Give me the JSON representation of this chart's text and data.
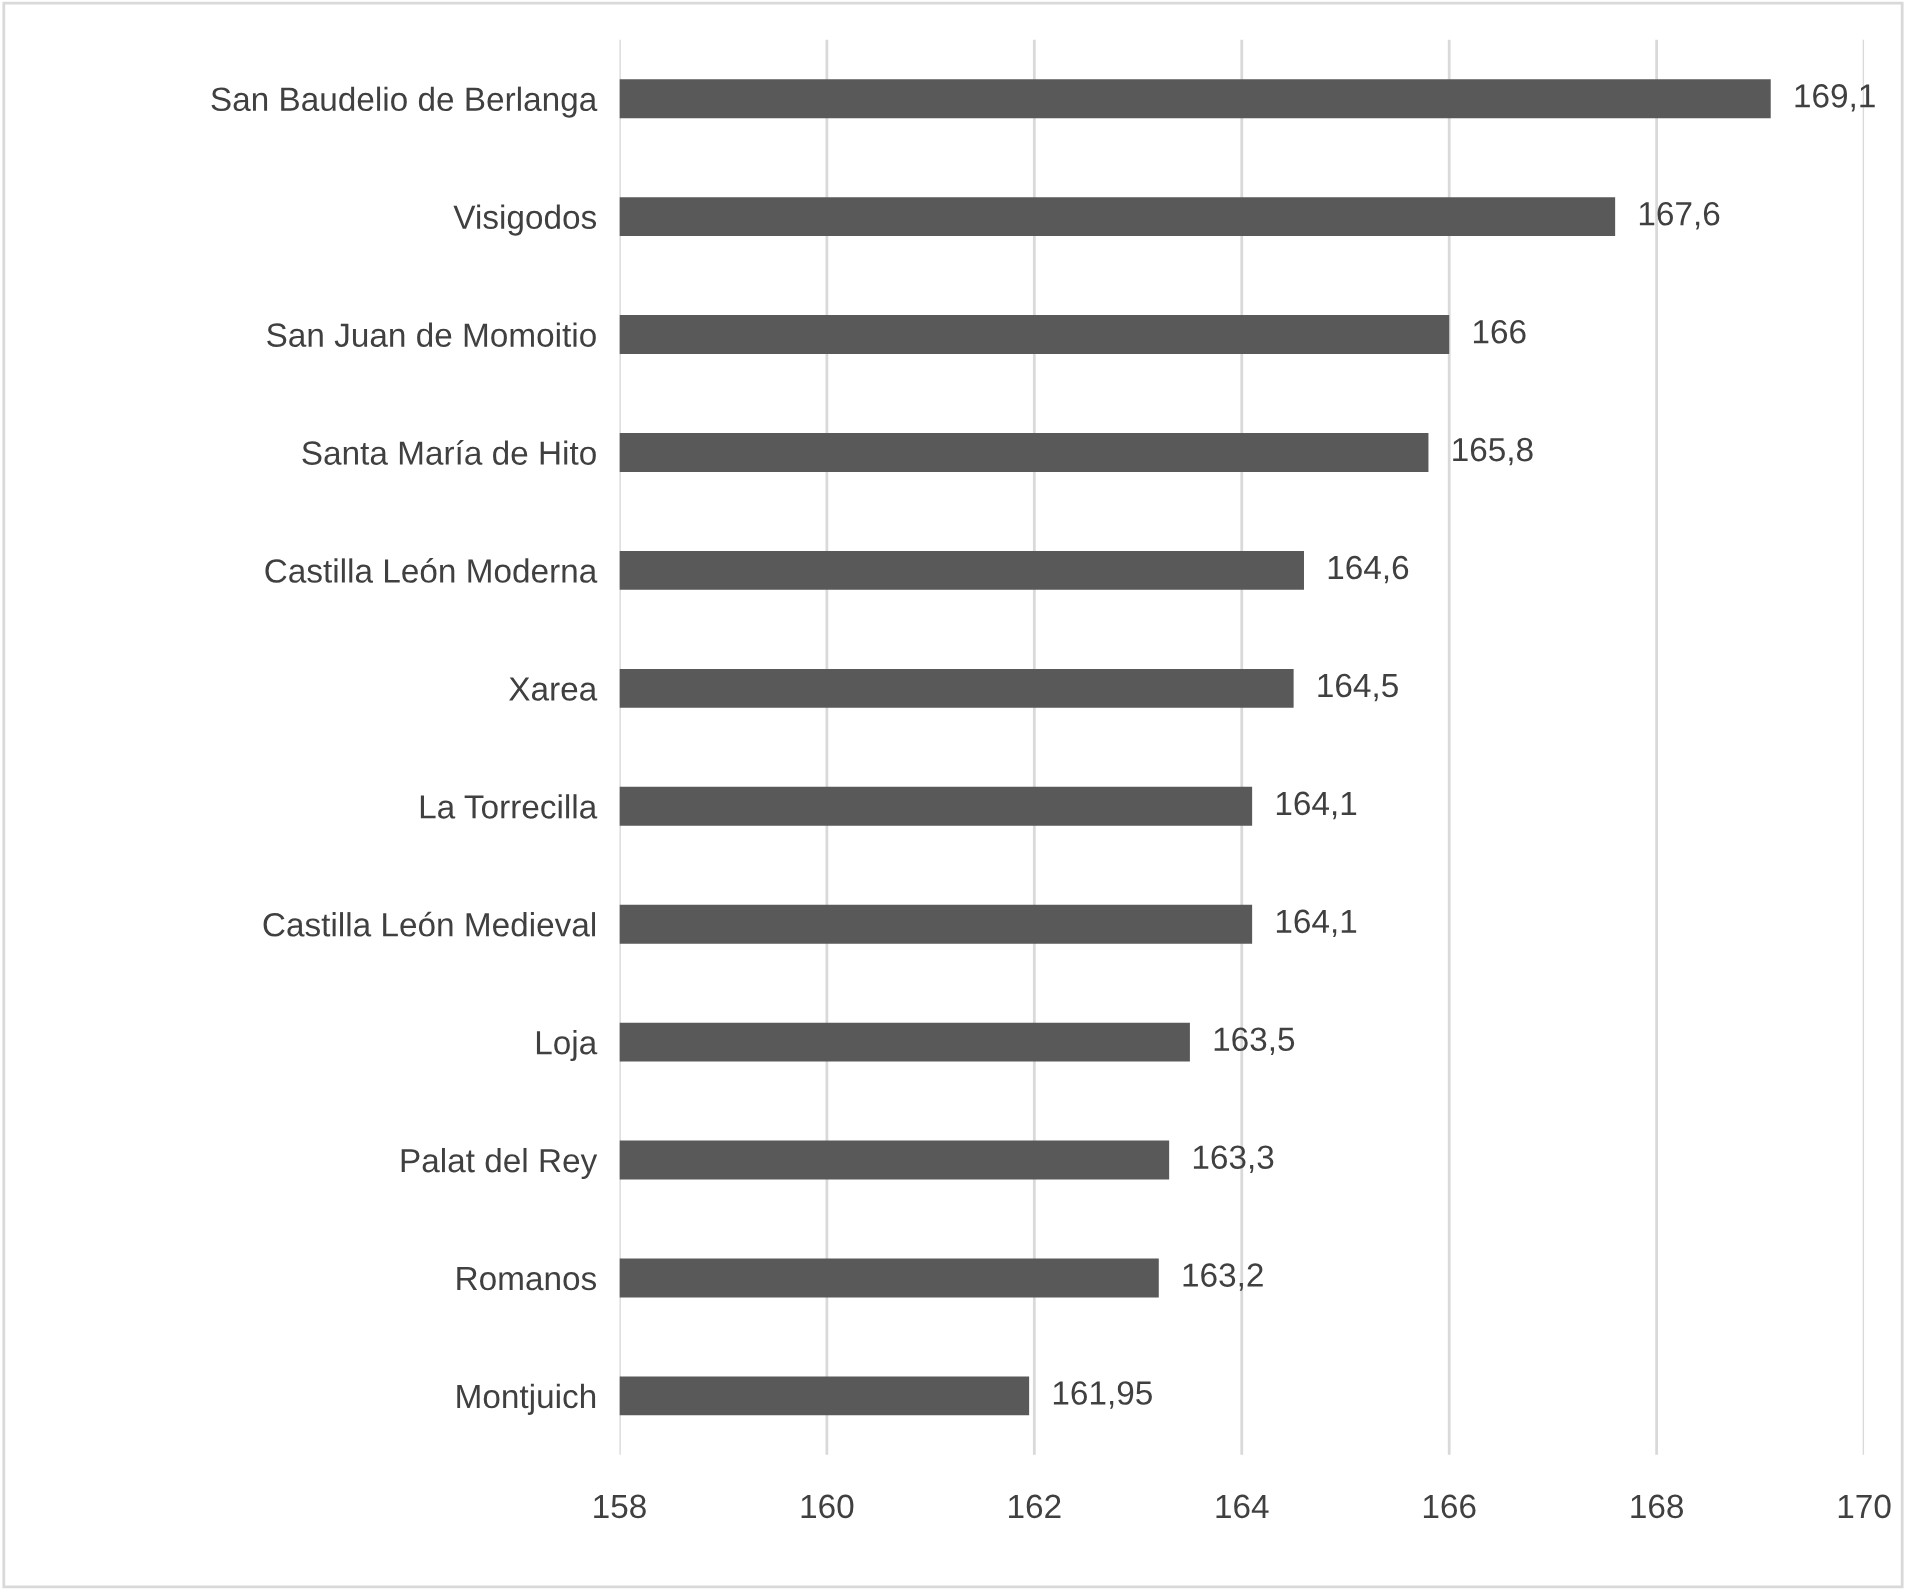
{
  "chart_data": {
    "type": "bar",
    "orientation": "horizontal",
    "categories": [
      "San Baudelio de Berlanga",
      "Visigodos",
      "San Juan de Momoitio",
      "Santa María de Hito",
      "Castilla León Moderna",
      "Xarea",
      "La Torrecilla",
      "Castilla León Medieval",
      "Loja",
      "Palat del Rey",
      "Romanos",
      "Montjuich"
    ],
    "values": [
      169.1,
      167.6,
      166,
      165.8,
      164.6,
      164.5,
      164.1,
      164.1,
      163.5,
      163.3,
      163.2,
      161.95
    ],
    "value_labels": [
      "169,1",
      "167,6",
      "166",
      "165,8",
      "164,6",
      "164,5",
      "164,1",
      "164,1",
      "163,5",
      "163,3",
      "163,2",
      "161,95"
    ],
    "color": "#595959",
    "xlim": [
      158,
      170
    ],
    "xticks": [
      158,
      160,
      162,
      164,
      166,
      168,
      170
    ],
    "grid": "x"
  }
}
